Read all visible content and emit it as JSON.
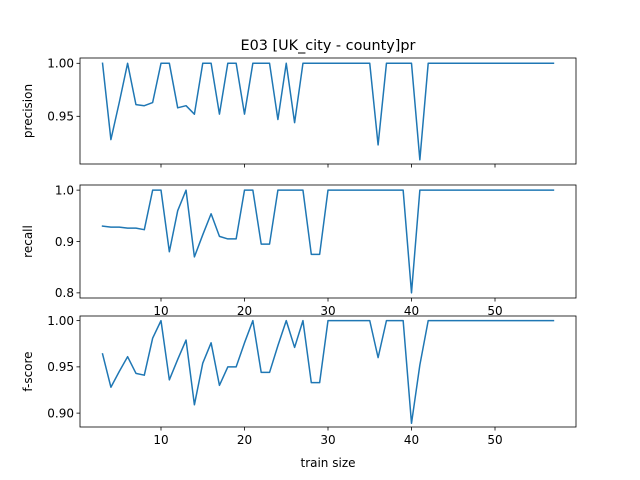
{
  "title": "E03 [UK_city - county]pr",
  "colors": {
    "line": "#1f77b4",
    "axes": "#000000",
    "background": "#ffffff"
  },
  "xlabel": "train size",
  "chart_data": [
    {
      "type": "line",
      "ylabel": "precision",
      "xlim": [
        0.3,
        59.7
      ],
      "ylim": [
        0.905,
        1.005
      ],
      "xticks": [
        10,
        20,
        30,
        40,
        50
      ],
      "yticks": [
        0.95,
        1.0
      ],
      "ytick_labels": [
        "0.95",
        "1.00"
      ],
      "show_xtick_labels": false,
      "grid": false,
      "series": [
        {
          "x": [
            3,
            4,
            5,
            6,
            7,
            8,
            9,
            10,
            11,
            12,
            13,
            14,
            15,
            16,
            17,
            18,
            19,
            20,
            21,
            22,
            23,
            24,
            25,
            26,
            27,
            28,
            29,
            30,
            31,
            32,
            33,
            34,
            35,
            36,
            37,
            38,
            39,
            40,
            41,
            42,
            43,
            44,
            45,
            46,
            47,
            48,
            49,
            50,
            51,
            52,
            53,
            54,
            55,
            56,
            57
          ],
          "values": [
            1.0,
            0.928,
            0.963,
            1.0,
            0.961,
            0.96,
            0.963,
            1.0,
            1.0,
            0.958,
            0.96,
            0.952,
            1.0,
            1.0,
            0.952,
            1.0,
            1.0,
            0.952,
            1.0,
            1.0,
            1.0,
            0.947,
            1.0,
            0.944,
            1.0,
            1.0,
            1.0,
            1.0,
            1.0,
            1.0,
            1.0,
            1.0,
            1.0,
            0.923,
            1.0,
            1.0,
            1.0,
            1.0,
            0.909,
            1.0,
            1.0,
            1.0,
            1.0,
            1.0,
            1.0,
            1.0,
            1.0,
            1.0,
            1.0,
            1.0,
            1.0,
            1.0,
            1.0,
            1.0,
            1.0
          ]
        }
      ]
    },
    {
      "type": "line",
      "ylabel": "recall",
      "xlim": [
        0.3,
        59.7
      ],
      "ylim": [
        0.79,
        1.01
      ],
      "xticks": [
        10,
        20,
        30,
        40,
        50
      ],
      "yticks": [
        0.8,
        0.9,
        1.0
      ],
      "ytick_labels": [
        "0.8",
        "0.9",
        "1.0"
      ],
      "show_xtick_labels": true,
      "xtick_labels": [
        "10",
        "20",
        "30",
        "40",
        "50"
      ],
      "grid": false,
      "series": [
        {
          "x": [
            3,
            4,
            5,
            6,
            7,
            8,
            9,
            10,
            11,
            12,
            13,
            14,
            15,
            16,
            17,
            18,
            19,
            20,
            21,
            22,
            23,
            24,
            25,
            26,
            27,
            28,
            29,
            30,
            31,
            32,
            33,
            34,
            35,
            36,
            37,
            38,
            39,
            40,
            41,
            42,
            43,
            44,
            45,
            46,
            47,
            48,
            49,
            50,
            51,
            52,
            53,
            54,
            55,
            56,
            57
          ],
          "values": [
            0.93,
            0.928,
            0.928,
            0.926,
            0.926,
            0.923,
            1.0,
            1.0,
            0.88,
            0.96,
            1.0,
            0.87,
            0.913,
            0.954,
            0.91,
            0.905,
            0.905,
            1.0,
            1.0,
            0.895,
            0.895,
            1.0,
            1.0,
            1.0,
            1.0,
            0.875,
            0.875,
            1.0,
            1.0,
            1.0,
            1.0,
            1.0,
            1.0,
            1.0,
            1.0,
            1.0,
            1.0,
            0.8,
            1.0,
            1.0,
            1.0,
            1.0,
            1.0,
            1.0,
            1.0,
            1.0,
            1.0,
            1.0,
            1.0,
            1.0,
            1.0,
            1.0,
            1.0,
            1.0,
            1.0
          ]
        }
      ]
    },
    {
      "type": "line",
      "ylabel": "f-score",
      "xlim": [
        0.3,
        59.7
      ],
      "ylim": [
        0.885,
        1.005
      ],
      "xticks": [
        10,
        20,
        30,
        40,
        50
      ],
      "yticks": [
        0.9,
        0.95,
        1.0
      ],
      "ytick_labels": [
        "0.90",
        "0.95",
        "1.00"
      ],
      "show_xtick_labels": true,
      "xtick_labels": [
        "10",
        "20",
        "30",
        "40",
        "50"
      ],
      "grid": false,
      "series": [
        {
          "x": [
            3,
            4,
            5,
            6,
            7,
            8,
            9,
            10,
            11,
            12,
            13,
            14,
            15,
            16,
            17,
            18,
            19,
            20,
            21,
            22,
            23,
            24,
            25,
            26,
            27,
            28,
            29,
            30,
            31,
            32,
            33,
            34,
            35,
            36,
            37,
            38,
            39,
            40,
            41,
            42,
            43,
            44,
            45,
            46,
            47,
            48,
            49,
            50,
            51,
            52,
            53,
            54,
            55,
            56,
            57
          ],
          "values": [
            0.964,
            0.928,
            0.945,
            0.961,
            0.943,
            0.941,
            0.981,
            1.0,
            0.936,
            0.958,
            0.979,
            0.909,
            0.954,
            0.976,
            0.93,
            0.95,
            0.95,
            0.976,
            1.0,
            0.944,
            0.944,
            0.973,
            1.0,
            0.971,
            1.0,
            0.933,
            0.933,
            1.0,
            1.0,
            1.0,
            1.0,
            1.0,
            1.0,
            0.96,
            1.0,
            1.0,
            1.0,
            0.889,
            0.952,
            1.0,
            1.0,
            1.0,
            1.0,
            1.0,
            1.0,
            1.0,
            1.0,
            1.0,
            1.0,
            1.0,
            1.0,
            1.0,
            1.0,
            1.0,
            1.0
          ]
        }
      ]
    }
  ]
}
